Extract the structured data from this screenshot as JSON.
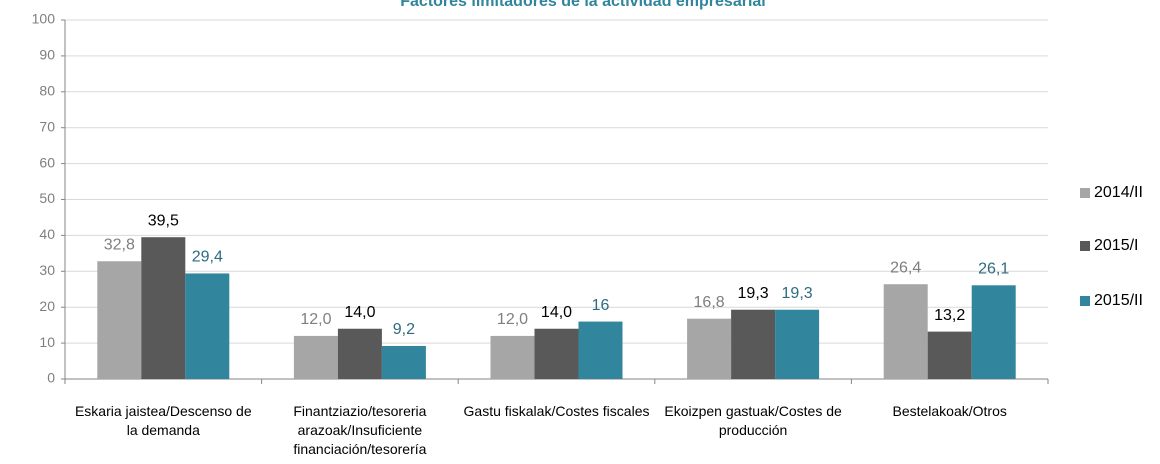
{
  "chart_data": {
    "type": "bar",
    "title": "Factores limitadores de la actividad empresarial",
    "categories": [
      "Eskaria jaistea/Descenso de la demanda",
      "Finantziazio/tesoreria arazoak/Insuficiente financiación/tesorería",
      "Gastu fiskalak/Costes fiscales",
      "Ekoizpen gastuak/Costes de producción",
      "Bestelakoak/Otros"
    ],
    "series": [
      {
        "name": "2014/II",
        "color": "#a6a6a6",
        "values": [
          32.8,
          12.0,
          12.0,
          16.8,
          26.4
        ],
        "value_labels": [
          "32,8",
          "12,0",
          "12,0",
          "16,8",
          "26,4"
        ]
      },
      {
        "name": "2015/I",
        "color": "#595959",
        "values": [
          39.5,
          14.0,
          14.0,
          19.3,
          13.2
        ],
        "value_labels": [
          "39,5",
          "14,0",
          "14,0",
          "19,3",
          "13,2"
        ]
      },
      {
        "name": "2015/II",
        "color": "#31859c",
        "values": [
          29.4,
          9.2,
          16,
          19.3,
          26.1
        ],
        "value_labels": [
          "29,4",
          "9,2",
          "16",
          "19,3",
          "26,1"
        ]
      }
    ],
    "ylim": [
      0,
      100
    ],
    "yticks": [
      0,
      10,
      20,
      30,
      40,
      50,
      60,
      70,
      80,
      90,
      100
    ],
    "grid": true,
    "legend": "right"
  }
}
